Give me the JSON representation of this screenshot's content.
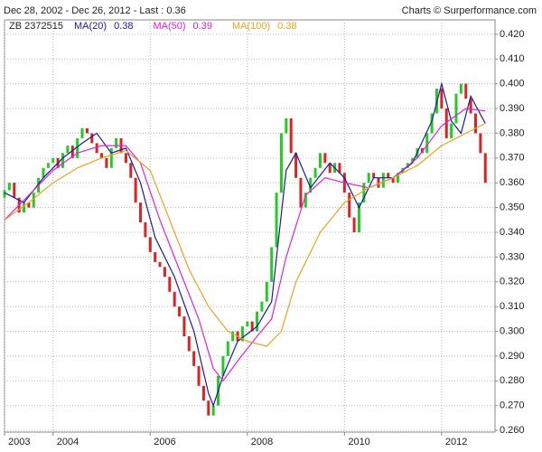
{
  "chart_data": {
    "type": "candlestick",
    "title": "Dec 28, 2002 - Dec 26, 2012 - Last : 0.36",
    "source": "Charts © Surperformance.com",
    "instrument": "ZB 2372515",
    "up_color": "#22cc22",
    "down_color": "#dd2222",
    "xlim": [
      2003,
      2013.1
    ],
    "xticks": [
      2003,
      2004,
      2006,
      2008,
      2010,
      2012
    ],
    "ylim": [
      0.2593,
      0.4258
    ],
    "yticks": [
      {
        "value": 0.26,
        "label": "0.260"
      },
      {
        "value": 0.27,
        "label": "0.270"
      },
      {
        "value": 0.28,
        "label": "0.280"
      },
      {
        "value": 0.29,
        "label": "0.290"
      },
      {
        "value": 0.3,
        "label": "0.300"
      },
      {
        "value": 0.31,
        "label": "0.310"
      },
      {
        "value": 0.32,
        "label": "0.320"
      },
      {
        "value": 0.33,
        "label": "0.330"
      },
      {
        "value": 0.34,
        "label": "0.340"
      },
      {
        "value": 0.35,
        "label": "0.350"
      },
      {
        "value": 0.36,
        "label": "0.360"
      },
      {
        "value": 0.37,
        "label": "0.370"
      },
      {
        "value": 0.38,
        "label": "0.380"
      },
      {
        "value": 0.39,
        "label": "0.390"
      },
      {
        "value": 0.4,
        "label": "0.400"
      },
      {
        "value": 0.41,
        "label": "0.410"
      },
      {
        "value": 0.42,
        "label": "0.420"
      }
    ],
    "grid": true,
    "x": [
      2003.0,
      2003.1,
      2003.2,
      2003.3,
      2003.4,
      2003.5,
      2003.6,
      2003.7,
      2003.8,
      2003.9,
      2004.0,
      2004.1,
      2004.2,
      2004.3,
      2004.4,
      2004.5,
      2004.6,
      2004.7,
      2004.8,
      2004.9,
      2005.0,
      2005.1,
      2005.2,
      2005.3,
      2005.4,
      2005.5,
      2005.6,
      2005.7,
      2005.8,
      2005.9,
      2006.0,
      2006.1,
      2006.2,
      2006.3,
      2006.4,
      2006.5,
      2006.6,
      2006.7,
      2006.8,
      2006.9,
      2007.0,
      2007.1,
      2007.2,
      2007.3,
      2007.4,
      2007.5,
      2007.6,
      2007.7,
      2007.8,
      2007.9,
      2008.0,
      2008.1,
      2008.2,
      2008.3,
      2008.4,
      2008.5,
      2008.6,
      2008.7,
      2008.8,
      2008.9,
      2009.0,
      2009.1,
      2009.2,
      2009.3,
      2009.4,
      2009.5,
      2009.6,
      2009.7,
      2009.8,
      2009.9,
      2010.0,
      2010.1,
      2010.2,
      2010.3,
      2010.4,
      2010.5,
      2010.6,
      2010.7,
      2010.8,
      2010.9,
      2011.0,
      2011.1,
      2011.2,
      2011.3,
      2011.4,
      2011.5,
      2011.6,
      2011.7,
      2011.8,
      2011.9,
      2012.0,
      2012.1,
      2012.2,
      2012.3,
      2012.4,
      2012.5,
      2012.6,
      2012.7,
      2012.8,
      2012.9
    ],
    "open": [
      0.354,
      0.357,
      0.36,
      0.354,
      0.348,
      0.352,
      0.35,
      0.356,
      0.362,
      0.366,
      0.368,
      0.37,
      0.366,
      0.372,
      0.375,
      0.37,
      0.378,
      0.382,
      0.38,
      0.376,
      0.372,
      0.37,
      0.366,
      0.374,
      0.378,
      0.372,
      0.368,
      0.362,
      0.352,
      0.344,
      0.338,
      0.332,
      0.328,
      0.326,
      0.322,
      0.316,
      0.31,
      0.306,
      0.298,
      0.292,
      0.286,
      0.278,
      0.272,
      0.266,
      0.27,
      0.282,
      0.29,
      0.296,
      0.3,
      0.296,
      0.302,
      0.304,
      0.3,
      0.308,
      0.312,
      0.32,
      0.334,
      0.356,
      0.38,
      0.386,
      0.372,
      0.362,
      0.35,
      0.356,
      0.362,
      0.366,
      0.372,
      0.368,
      0.364,
      0.368,
      0.364,
      0.356,
      0.346,
      0.34,
      0.352,
      0.36,
      0.364,
      0.362,
      0.358,
      0.364,
      0.362,
      0.36,
      0.364,
      0.366,
      0.368,
      0.37,
      0.374,
      0.372,
      0.38,
      0.388,
      0.398,
      0.39,
      0.378,
      0.384,
      0.396,
      0.4,
      0.394,
      0.388,
      0.38,
      0.372
    ],
    "close": [
      0.357,
      0.36,
      0.354,
      0.348,
      0.352,
      0.35,
      0.356,
      0.362,
      0.366,
      0.368,
      0.37,
      0.366,
      0.372,
      0.375,
      0.37,
      0.378,
      0.382,
      0.38,
      0.376,
      0.372,
      0.37,
      0.366,
      0.374,
      0.378,
      0.372,
      0.368,
      0.362,
      0.352,
      0.344,
      0.338,
      0.332,
      0.328,
      0.326,
      0.322,
      0.316,
      0.31,
      0.306,
      0.298,
      0.292,
      0.286,
      0.278,
      0.272,
      0.266,
      0.27,
      0.282,
      0.29,
      0.296,
      0.3,
      0.296,
      0.302,
      0.304,
      0.3,
      0.308,
      0.312,
      0.32,
      0.334,
      0.356,
      0.38,
      0.386,
      0.372,
      0.362,
      0.35,
      0.356,
      0.362,
      0.366,
      0.372,
      0.368,
      0.364,
      0.368,
      0.364,
      0.356,
      0.346,
      0.34,
      0.352,
      0.36,
      0.364,
      0.362,
      0.358,
      0.364,
      0.362,
      0.36,
      0.364,
      0.366,
      0.368,
      0.37,
      0.374,
      0.372,
      0.38,
      0.388,
      0.398,
      0.39,
      0.378,
      0.384,
      0.396,
      0.4,
      0.394,
      0.388,
      0.38,
      0.372,
      0.36
    ],
    "series": [
      {
        "name": "MA(20)",
        "last": 0.38,
        "color": "#1a1aa0",
        "x": [
          2003,
          2003.4,
          2003.8,
          2004.2,
          2004.6,
          2004.9,
          2005.2,
          2005.5,
          2005.8,
          2006.1,
          2006.5,
          2006.9,
          2007.2,
          2007.3,
          2007.5,
          2007.8,
          2008.2,
          2008.5,
          2008.8,
          2009.0,
          2009.3,
          2009.7,
          2010.0,
          2010.3,
          2010.6,
          2011.0,
          2011.4,
          2011.8,
          2012.0,
          2012.2,
          2012.4,
          2012.6,
          2012.9
        ],
        "values": [
          0.356,
          0.352,
          0.362,
          0.37,
          0.376,
          0.38,
          0.372,
          0.374,
          0.36,
          0.338,
          0.322,
          0.3,
          0.275,
          0.27,
          0.282,
          0.296,
          0.302,
          0.312,
          0.365,
          0.372,
          0.358,
          0.368,
          0.362,
          0.35,
          0.362,
          0.362,
          0.368,
          0.385,
          0.4,
          0.385,
          0.38,
          0.395,
          0.384
        ]
      },
      {
        "name": "MA(50)",
        "last": 0.39,
        "color": "#e020e0",
        "x": [
          2003,
          2003.5,
          2004,
          2004.5,
          2005,
          2005.5,
          2005.8,
          2006.2,
          2006.6,
          2007,
          2007.3,
          2007.5,
          2007.8,
          2008.2,
          2008.5,
          2008.8,
          2009.2,
          2009.6,
          2010,
          2010.5,
          2011,
          2011.5,
          2012,
          2012.5,
          2012.9
        ],
        "values": [
          0.345,
          0.355,
          0.365,
          0.372,
          0.375,
          0.375,
          0.368,
          0.345,
          0.325,
          0.305,
          0.285,
          0.28,
          0.288,
          0.298,
          0.305,
          0.33,
          0.355,
          0.362,
          0.36,
          0.358,
          0.362,
          0.37,
          0.383,
          0.39,
          0.389
        ]
      },
      {
        "name": "MA(100)",
        "last": 0.38,
        "color": "#f0a020",
        "x": [
          2003,
          2003.5,
          2004,
          2004.5,
          2005,
          2005.5,
          2006,
          2006.4,
          2006.8,
          2007.2,
          2007.6,
          2008,
          2008.4,
          2008.7,
          2009,
          2009.5,
          2010,
          2010.5,
          2011,
          2011.5,
          2012,
          2012.5,
          2012.9
        ],
        "values": [
          0.345,
          0.352,
          0.36,
          0.366,
          0.37,
          0.373,
          0.365,
          0.345,
          0.325,
          0.31,
          0.3,
          0.296,
          0.294,
          0.3,
          0.32,
          0.34,
          0.352,
          0.358,
          0.362,
          0.367,
          0.375,
          0.38,
          0.384
        ]
      }
    ]
  }
}
